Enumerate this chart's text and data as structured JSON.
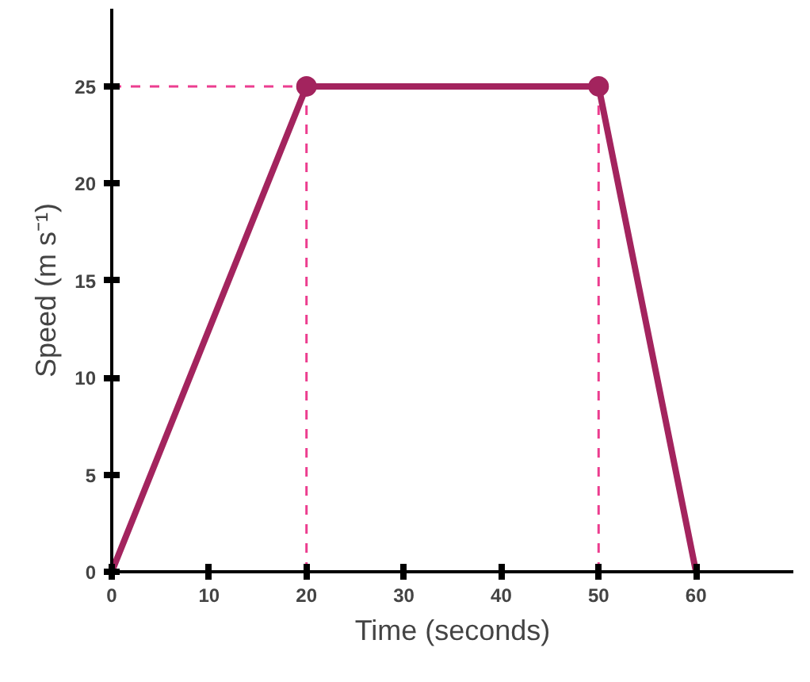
{
  "chart_data": {
    "type": "line",
    "xlabel": "Time (seconds)",
    "ylabel": "Speed (m s⁻¹)",
    "series": [
      {
        "type": "line",
        "color": "#a3245e",
        "x": [
          0,
          20,
          50,
          60
        ],
        "values": [
          0,
          25,
          25,
          0
        ]
      },
      {
        "type": "scatter",
        "color": "#a3245e",
        "x": [
          20,
          50
        ],
        "values": [
          25,
          25
        ]
      }
    ],
    "xlim": [
      0,
      70
    ],
    "ylim": [
      0,
      29
    ],
    "xticks": [
      0,
      10,
      20,
      30,
      40,
      50,
      60
    ],
    "yticks": [
      0,
      5,
      10,
      15,
      20,
      25
    ],
    "ref_lines": [
      {
        "axis": "y",
        "value": 25,
        "color": "#ec3d8f",
        "line_style": "dashed"
      },
      {
        "axis": "x",
        "value": 20,
        "color": "#ec3d8f",
        "line_style": "dashed"
      },
      {
        "axis": "x",
        "value": 50,
        "color": "#ec3d8f",
        "line_style": "dashed"
      }
    ],
    "grid": false
  }
}
